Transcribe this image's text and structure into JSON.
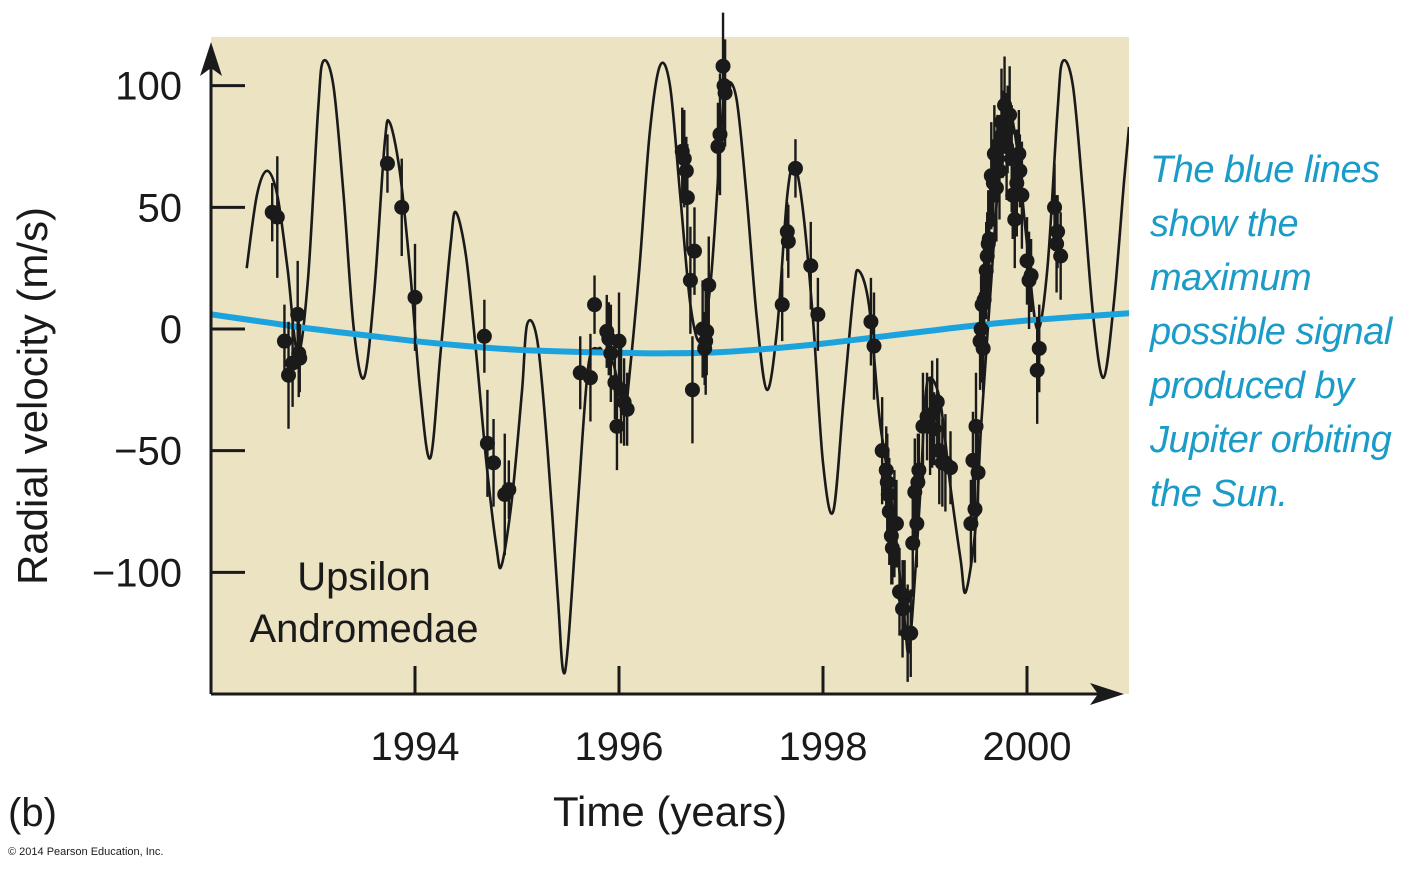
{
  "chart_data": {
    "type": "line",
    "xlabel": "Time (years)",
    "ylabel": "Radial velocity (m/s)",
    "xlim": [
      1992.0,
      2001.0
    ],
    "ylim": [
      -150,
      120
    ],
    "x_ticks": [
      1994,
      1996,
      1998,
      2000
    ],
    "x_tick_labels": [
      "1994",
      "1996",
      "1998",
      "2000"
    ],
    "y_ticks": [
      100,
      50,
      0,
      -50,
      -100
    ],
    "y_tick_labels": [
      "100",
      "50",
      "0",
      "−50",
      "−100"
    ],
    "grid": false,
    "background_color": "#ebe3c2",
    "fit_color": "#1a1a1a",
    "jupiter_color": "#1ca3dd",
    "point_color": "#1a1a1a",
    "star_label": [
      "Upsilon",
      "Andromedae"
    ],
    "panel_label": "(b)",
    "copyright": "© 2014 Pearson Education, Inc.",
    "annotation": "The blue lines show the maximum possible signal produced by Jupiter orbiting the Sun.",
    "series": [
      {
        "type": "line",
        "points": [
          [
            1992.35,
            25
          ],
          [
            1992.45,
            55
          ],
          [
            1992.55,
            65
          ],
          [
            1992.65,
            55
          ],
          [
            1992.75,
            25
          ],
          [
            1992.85,
            -10
          ],
          [
            1992.95,
            20
          ],
          [
            1993.05,
            90
          ],
          [
            1993.1,
            110
          ],
          [
            1993.2,
            100
          ],
          [
            1993.3,
            55
          ],
          [
            1993.4,
            0
          ],
          [
            1993.5,
            -20
          ],
          [
            1993.6,
            15
          ],
          [
            1993.7,
            75
          ],
          [
            1993.75,
            85
          ],
          [
            1993.85,
            65
          ],
          [
            1993.95,
            25
          ],
          [
            1994.05,
            -25
          ],
          [
            1994.15,
            -53
          ],
          [
            1994.25,
            -10
          ],
          [
            1994.35,
            35
          ],
          [
            1994.4,
            48
          ],
          [
            1994.5,
            30
          ],
          [
            1994.6,
            -10
          ],
          [
            1994.7,
            -55
          ],
          [
            1994.8,
            -90
          ],
          [
            1994.85,
            -97
          ],
          [
            1994.95,
            -70
          ],
          [
            1995.05,
            -25
          ],
          [
            1995.1,
            2
          ],
          [
            1995.2,
            -5
          ],
          [
            1995.3,
            -50
          ],
          [
            1995.4,
            -110
          ],
          [
            1995.45,
            -140
          ],
          [
            1995.5,
            -130
          ],
          [
            1995.6,
            -70
          ],
          [
            1995.7,
            -15
          ],
          [
            1995.8,
            -8
          ],
          [
            1995.85,
            -10
          ],
          [
            1995.95,
            -15
          ],
          [
            1996.05,
            -35
          ],
          [
            1996.1,
            -20
          ],
          [
            1996.2,
            25
          ],
          [
            1996.3,
            80
          ],
          [
            1996.4,
            108
          ],
          [
            1996.5,
            100
          ],
          [
            1996.6,
            55
          ],
          [
            1996.7,
            10
          ],
          [
            1996.8,
            -5
          ],
          [
            1996.9,
            20
          ],
          [
            1997.0,
            80
          ],
          [
            1997.05,
            100
          ],
          [
            1997.15,
            95
          ],
          [
            1997.25,
            55
          ],
          [
            1997.35,
            5
          ],
          [
            1997.45,
            -25
          ],
          [
            1997.55,
            0
          ],
          [
            1997.65,
            55
          ],
          [
            1997.72,
            67
          ],
          [
            1997.8,
            50
          ],
          [
            1997.9,
            5
          ],
          [
            1998.0,
            -55
          ],
          [
            1998.1,
            -75
          ],
          [
            1998.2,
            -30
          ],
          [
            1998.3,
            15
          ],
          [
            1998.35,
            24
          ],
          [
            1998.45,
            10
          ],
          [
            1998.55,
            -35
          ],
          [
            1998.6,
            -50
          ],
          [
            1998.7,
            -80
          ],
          [
            1998.8,
            -120
          ],
          [
            1998.85,
            -130
          ],
          [
            1998.95,
            -70
          ],
          [
            1999.0,
            -30
          ],
          [
            1999.05,
            -20
          ],
          [
            1999.15,
            -30
          ],
          [
            1999.25,
            -65
          ],
          [
            1999.35,
            -95
          ],
          [
            1999.4,
            -108
          ],
          [
            1999.5,
            -80
          ],
          [
            1999.55,
            -40
          ],
          [
            1999.65,
            20
          ],
          [
            1999.75,
            80
          ],
          [
            1999.8,
            95
          ],
          [
            1999.9,
            75
          ],
          [
            2000.0,
            35
          ],
          [
            2000.1,
            0
          ],
          [
            2000.2,
            25
          ],
          [
            2000.3,
            90
          ],
          [
            2000.35,
            110
          ],
          [
            2000.45,
            100
          ],
          [
            2000.55,
            55
          ],
          [
            2000.65,
            5
          ],
          [
            2000.75,
            -20
          ],
          [
            2000.85,
            10
          ],
          [
            2000.95,
            60
          ],
          [
            2001.0,
            83
          ]
        ]
      },
      {
        "type": "line",
        "points": [
          [
            1992.0,
            6
          ],
          [
            1992.5,
            3
          ],
          [
            1993.0,
            0
          ],
          [
            1993.5,
            -2.5
          ],
          [
            1994.0,
            -5
          ],
          [
            1994.5,
            -7
          ],
          [
            1995.0,
            -8.5
          ],
          [
            1995.5,
            -9.3
          ],
          [
            1996.0,
            -9.8
          ],
          [
            1996.5,
            -10
          ],
          [
            1997.0,
            -9.5
          ],
          [
            1997.5,
            -8
          ],
          [
            1998.0,
            -6
          ],
          [
            1998.5,
            -3.5
          ],
          [
            1999.0,
            -1
          ],
          [
            1999.5,
            1.5
          ],
          [
            2000.0,
            3.5
          ],
          [
            2000.5,
            5
          ],
          [
            2001.0,
            6.5
          ]
        ]
      },
      {
        "type": "scatter",
        "points": [
          [
            1992.6,
            48,
            12
          ],
          [
            1992.65,
            46,
            25
          ],
          [
            1992.72,
            -5,
            15
          ],
          [
            1992.76,
            -19,
            22
          ],
          [
            1992.8,
            -14,
            18
          ],
          [
            1992.85,
            6,
            22
          ],
          [
            1992.86,
            -10,
            18
          ],
          [
            1992.87,
            -12,
            14
          ],
          [
            1993.73,
            68,
            12
          ],
          [
            1993.87,
            50,
            20
          ],
          [
            1994.0,
            13,
            22
          ],
          [
            1994.68,
            -3,
            15
          ],
          [
            1994.71,
            -47,
            22
          ],
          [
            1994.77,
            -55,
            18
          ],
          [
            1994.88,
            -68,
            25
          ],
          [
            1994.92,
            -66,
            12
          ],
          [
            1995.62,
            -18,
            15
          ],
          [
            1995.72,
            -20,
            18
          ],
          [
            1995.76,
            10,
            12
          ],
          [
            1995.88,
            -1,
            15
          ],
          [
            1995.9,
            -4,
            15
          ],
          [
            1995.92,
            -10,
            20
          ],
          [
            1995.96,
            -22,
            15
          ],
          [
            1995.98,
            -40,
            18
          ],
          [
            1996.0,
            -5,
            20
          ],
          [
            1996.02,
            -25,
            22
          ],
          [
            1996.05,
            -30,
            18
          ],
          [
            1996.08,
            -33,
            15
          ],
          [
            1996.62,
            73,
            18
          ],
          [
            1996.64,
            70,
            20
          ],
          [
            1996.66,
            65,
            14
          ],
          [
            1996.67,
            54,
            22
          ],
          [
            1996.7,
            20,
            22
          ],
          [
            1996.72,
            -25,
            22
          ],
          [
            1996.74,
            32,
            18
          ],
          [
            1996.82,
            0,
            20
          ],
          [
            1996.84,
            -8,
            15
          ],
          [
            1996.85,
            -5,
            22
          ],
          [
            1996.86,
            -1,
            18
          ],
          [
            1996.88,
            18,
            20
          ],
          [
            1996.97,
            75,
            18
          ],
          [
            1996.99,
            80,
            25
          ],
          [
            1997.02,
            108,
            22
          ],
          [
            1997.03,
            100,
            18
          ],
          [
            1997.04,
            97,
            22
          ],
          [
            1997.6,
            10,
            15
          ],
          [
            1997.65,
            40,
            12
          ],
          [
            1997.66,
            36,
            15
          ],
          [
            1997.73,
            66,
            12
          ],
          [
            1997.88,
            26,
            18
          ],
          [
            1997.95,
            6,
            15
          ],
          [
            1998.47,
            3,
            18
          ],
          [
            1998.5,
            -7,
            22
          ],
          [
            1998.58,
            -50,
            22
          ],
          [
            1998.62,
            -58,
            18
          ],
          [
            1998.63,
            -63,
            20
          ],
          [
            1998.64,
            -68,
            18
          ],
          [
            1998.65,
            -75,
            22
          ],
          [
            1998.67,
            -85,
            20
          ],
          [
            1998.68,
            -90,
            15
          ],
          [
            1998.7,
            -80,
            22
          ],
          [
            1998.72,
            -80,
            18
          ],
          [
            1998.75,
            -108,
            18
          ],
          [
            1998.78,
            -115,
            20
          ],
          [
            1998.8,
            -110,
            15
          ],
          [
            1998.83,
            -125,
            20
          ],
          [
            1998.86,
            -125,
            18
          ],
          [
            1998.88,
            -88,
            22
          ],
          [
            1998.9,
            -67,
            22
          ],
          [
            1998.92,
            -80,
            18
          ],
          [
            1998.93,
            -63,
            20
          ],
          [
            1998.94,
            -58,
            15
          ],
          [
            1998.98,
            -40,
            22
          ],
          [
            1999.02,
            -36,
            18
          ],
          [
            1999.05,
            -40,
            20
          ],
          [
            1999.07,
            -35,
            22
          ],
          [
            1999.09,
            -41,
            15
          ],
          [
            1999.12,
            -30,
            18
          ],
          [
            1999.14,
            -50,
            22
          ],
          [
            1999.17,
            -55,
            18
          ],
          [
            1999.2,
            -55,
            20
          ],
          [
            1999.25,
            -57,
            15
          ],
          [
            1999.45,
            -80,
            18
          ],
          [
            1999.47,
            -54,
            20
          ],
          [
            1999.49,
            -74,
            22
          ],
          [
            1999.5,
            -40,
            22
          ],
          [
            1999.52,
            -59,
            18
          ],
          [
            1999.54,
            -5,
            20
          ],
          [
            1999.55,
            0,
            22
          ],
          [
            1999.56,
            10,
            15
          ],
          [
            1999.57,
            -8,
            18
          ],
          [
            1999.58,
            12,
            22
          ],
          [
            1999.6,
            24,
            20
          ],
          [
            1999.61,
            30,
            18
          ],
          [
            1999.62,
            35,
            22
          ],
          [
            1999.63,
            37,
            20
          ],
          [
            1999.65,
            63,
            22
          ],
          [
            1999.67,
            60,
            18
          ],
          [
            1999.68,
            72,
            20
          ],
          [
            1999.7,
            58,
            22
          ],
          [
            1999.71,
            70,
            18
          ],
          [
            1999.73,
            65,
            20
          ],
          [
            1999.75,
            85,
            22
          ],
          [
            1999.76,
            80,
            18
          ],
          [
            1999.78,
            92,
            20
          ],
          [
            1999.8,
            75,
            22
          ],
          [
            1999.81,
            82,
            18
          ],
          [
            1999.83,
            88,
            20
          ],
          [
            1999.85,
            70,
            22
          ],
          [
            1999.86,
            55,
            18
          ],
          [
            1999.88,
            45,
            20
          ],
          [
            1999.9,
            60,
            22
          ],
          [
            1999.92,
            72,
            18
          ],
          [
            1999.93,
            65,
            15
          ],
          [
            1999.95,
            55,
            22
          ],
          [
            2000.0,
            28,
            18
          ],
          [
            2000.02,
            20,
            20
          ],
          [
            2000.04,
            22,
            15
          ],
          [
            2000.1,
            -17,
            22
          ],
          [
            2000.12,
            -8,
            18
          ],
          [
            2000.27,
            50,
            18
          ],
          [
            2000.29,
            35,
            20
          ],
          [
            2000.3,
            40,
            15
          ],
          [
            2000.33,
            30,
            18
          ]
        ]
      }
    ]
  }
}
